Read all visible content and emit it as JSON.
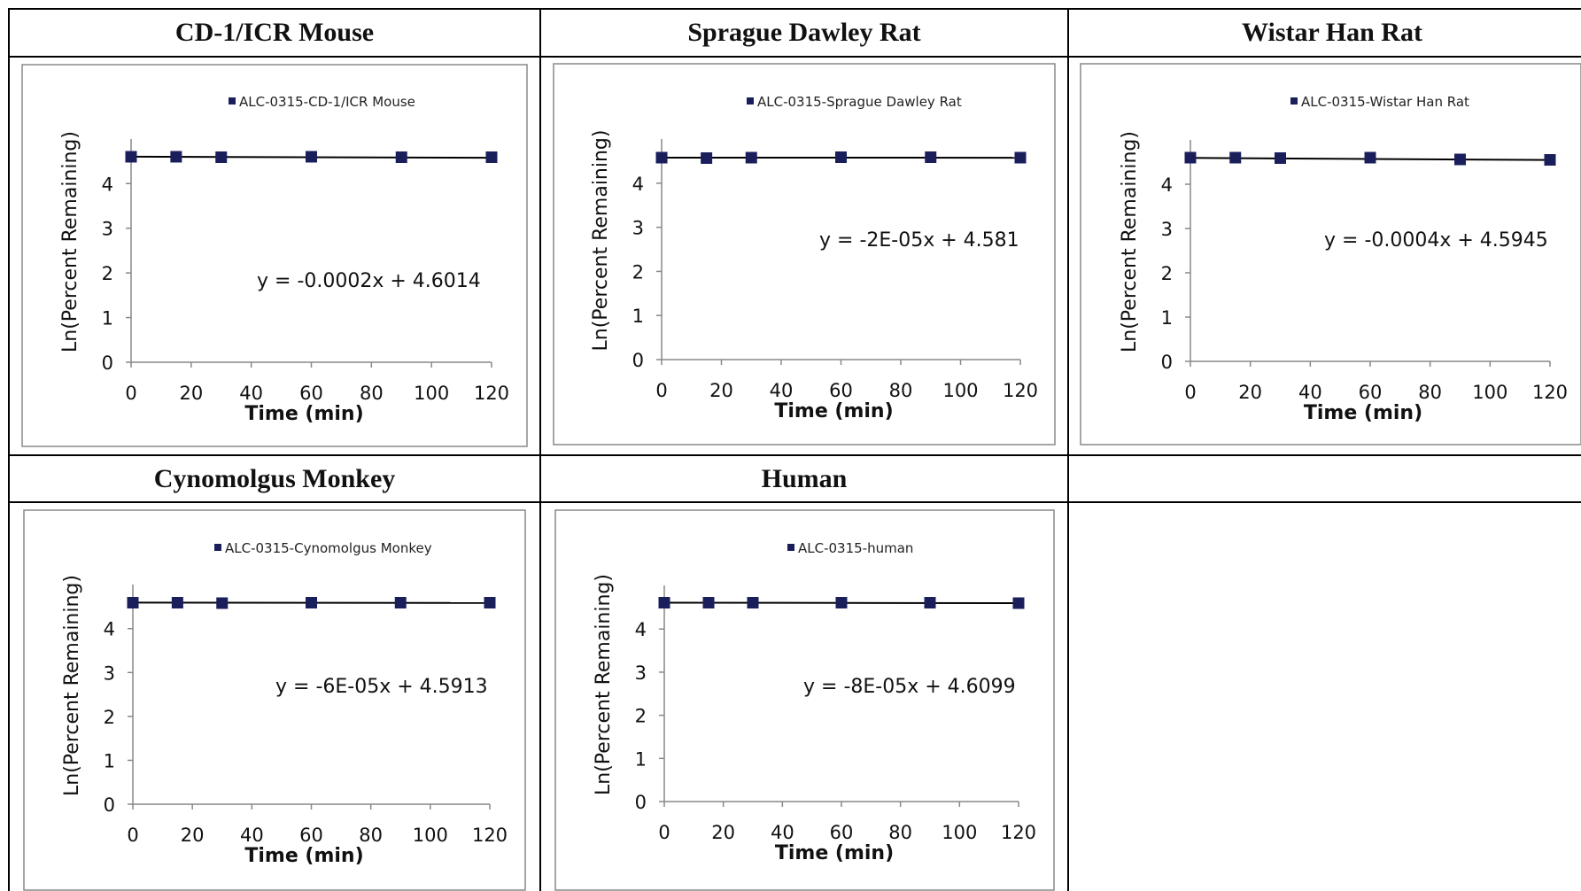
{
  "colors": {
    "marker": "#1a1f5c",
    "trendline": "#000000",
    "frame": "#888888",
    "axis": "#888888"
  },
  "chart_data": [
    {
      "type": "scatter",
      "panel_title": "CD-1/ICR Mouse",
      "xlabel": "Time (min)",
      "ylabel": "Ln(Percent Remaining)",
      "xlim": [
        0,
        120
      ],
      "ylim": [
        0,
        4.6
      ],
      "xticks": [
        0,
        20,
        40,
        60,
        80,
        100,
        120
      ],
      "yticks": [
        0,
        1,
        2,
        3,
        4
      ],
      "series": [
        {
          "name": "ALC-0315-CD-1/ICR Mouse",
          "x": [
            0,
            15,
            30,
            60,
            90,
            120
          ],
          "y": [
            4.6,
            4.6,
            4.59,
            4.6,
            4.59,
            4.59
          ]
        }
      ],
      "trendline": {
        "slope": -0.0002,
        "intercept": 4.6014,
        "equation": "y = -0.0002x + 4.6014"
      },
      "grid": false,
      "legend": "top"
    },
    {
      "type": "scatter",
      "panel_title": "Sprague Dawley Rat",
      "xlabel": "Time (min)",
      "ylabel": "Ln(Percent Remaining)",
      "xlim": [
        0,
        120
      ],
      "ylim": [
        0,
        4.6
      ],
      "xticks": [
        0,
        20,
        40,
        60,
        80,
        100,
        120
      ],
      "yticks": [
        0,
        1,
        2,
        3,
        4
      ],
      "series": [
        {
          "name": "ALC-0315-Sprague Dawley Rat",
          "x": [
            0,
            15,
            30,
            60,
            90,
            120
          ],
          "y": [
            4.58,
            4.57,
            4.58,
            4.59,
            4.59,
            4.58
          ]
        }
      ],
      "trendline": {
        "slope": -2e-05,
        "intercept": 4.581,
        "equation": "y = -2E-05x + 4.581"
      },
      "grid": false,
      "legend": "top"
    },
    {
      "type": "scatter",
      "panel_title": "Wistar Han Rat",
      "xlabel": "Time (min)",
      "ylabel": "Ln(Percent Remaining)",
      "xlim": [
        0,
        120
      ],
      "ylim": [
        0,
        4.6
      ],
      "xticks": [
        0,
        20,
        40,
        60,
        80,
        100,
        120
      ],
      "yticks": [
        0,
        1,
        2,
        3,
        4
      ],
      "series": [
        {
          "name": "ALC-0315-Wistar Han Rat",
          "x": [
            0,
            15,
            30,
            60,
            90,
            120
          ],
          "y": [
            4.6,
            4.6,
            4.59,
            4.6,
            4.56,
            4.55
          ]
        }
      ],
      "trendline": {
        "slope": -0.0004,
        "intercept": 4.5945,
        "equation": "y = -0.0004x + 4.5945"
      },
      "grid": false,
      "legend": "top"
    },
    {
      "type": "scatter",
      "panel_title": "Cynomolgus Monkey",
      "xlabel": "Time (min)",
      "ylabel": "Ln(Percent Remaining)",
      "xlim": [
        0,
        120
      ],
      "ylim": [
        0,
        4.6
      ],
      "xticks": [
        0,
        20,
        40,
        60,
        80,
        100,
        120
      ],
      "yticks": [
        0,
        1,
        2,
        3,
        4
      ],
      "series": [
        {
          "name": "ALC-0315-Cynomolgus Monkey",
          "x": [
            0,
            15,
            30,
            60,
            90,
            120
          ],
          "y": [
            4.59,
            4.59,
            4.58,
            4.59,
            4.59,
            4.59
          ]
        }
      ],
      "trendline": {
        "slope": -6e-05,
        "intercept": 4.5913,
        "equation": "y = -6E-05x + 4.5913"
      },
      "grid": false,
      "legend": "top"
    },
    {
      "type": "scatter",
      "panel_title": "Human",
      "xlabel": "Time (min)",
      "ylabel": "Ln(Percent Remaining)",
      "xlim": [
        0,
        120
      ],
      "ylim": [
        0,
        4.6
      ],
      "xticks": [
        0,
        20,
        40,
        60,
        80,
        100,
        120
      ],
      "yticks": [
        0,
        1,
        2,
        3,
        4
      ],
      "series": [
        {
          "name": "ALC-0315-human",
          "x": [
            0,
            15,
            30,
            60,
            90,
            120
          ],
          "y": [
            4.61,
            4.61,
            4.61,
            4.61,
            4.61,
            4.6
          ]
        }
      ],
      "trendline": {
        "slope": -8e-05,
        "intercept": 4.6099,
        "equation": "y = -8E-05x + 4.6099"
      },
      "grid": false,
      "legend": "top"
    }
  ]
}
